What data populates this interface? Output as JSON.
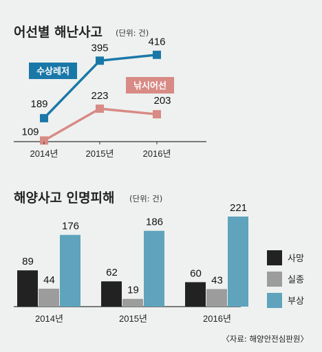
{
  "chart1": {
    "title": "어선별 해난사고",
    "unit": "(단위: 건)",
    "colors": {
      "series1": "#1a78a8",
      "series2": "#d88a85",
      "axis": "#333333"
    },
    "chart_data": {
      "type": "line",
      "categories": [
        "2014년",
        "2015년",
        "2016년"
      ],
      "series": [
        {
          "name": "수상레저",
          "values": [
            189,
            395,
            416
          ]
        },
        {
          "name": "낚시어선",
          "values": [
            109,
            223,
            203
          ]
        }
      ],
      "ylim": [
        100,
        440
      ]
    }
  },
  "chart2": {
    "title": "해양사고 인명피해",
    "unit": "(단위: 건)",
    "colors": {
      "사망": "#222222",
      "실종": "#9c9c9c",
      "부상": "#5fa3bd"
    },
    "chart_data": {
      "type": "bar",
      "categories": [
        "2014년",
        "2015년",
        "2016년"
      ],
      "series": [
        {
          "name": "사망",
          "values": [
            89,
            62,
            60
          ]
        },
        {
          "name": "실종",
          "values": [
            44,
            19,
            43
          ]
        },
        {
          "name": "부상",
          "values": [
            176,
            186,
            221
          ]
        }
      ],
      "ylim": [
        0,
        221
      ]
    },
    "legend": [
      "사망",
      "실종",
      "부상"
    ]
  },
  "source": "〈자료: 해양안전심판원〉"
}
